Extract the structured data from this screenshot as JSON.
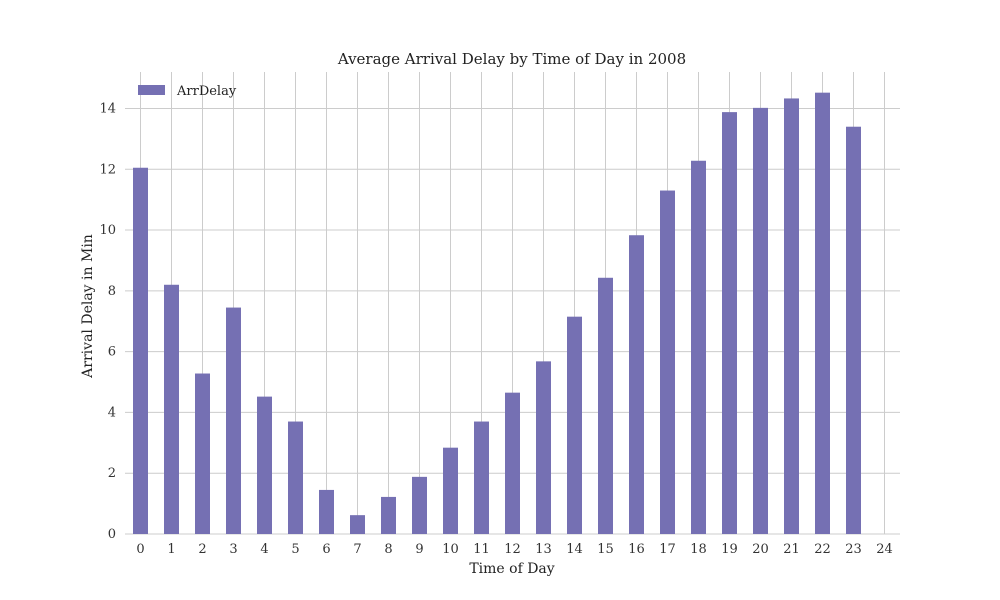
{
  "chart_data": {
    "type": "bar",
    "title": "Average Arrival Delay by Time of Day in 2008",
    "xlabel": "Time of Day",
    "ylabel": "Arrival Delay in Min",
    "categories": [
      "0",
      "1",
      "2",
      "3",
      "4",
      "5",
      "6",
      "7",
      "8",
      "9",
      "10",
      "11",
      "12",
      "13",
      "14",
      "15",
      "16",
      "17",
      "18",
      "19",
      "20",
      "21",
      "22",
      "23",
      "24"
    ],
    "series": [
      {
        "name": "ArrDelay",
        "color": "#7570b3",
        "values": [
          12.05,
          8.2,
          5.28,
          7.45,
          4.52,
          3.7,
          1.45,
          0.62,
          1.22,
          1.88,
          2.84,
          3.7,
          4.65,
          5.68,
          7.15,
          8.43,
          9.83,
          11.3,
          12.28,
          13.88,
          14.02,
          14.33,
          14.52,
          13.4,
          null
        ]
      }
    ],
    "ylim": [
      0,
      15.2
    ],
    "yticks": [
      "0",
      "2",
      "4",
      "6",
      "8",
      "10",
      "12",
      "14"
    ],
    "grid": true,
    "legend": "top-left"
  }
}
